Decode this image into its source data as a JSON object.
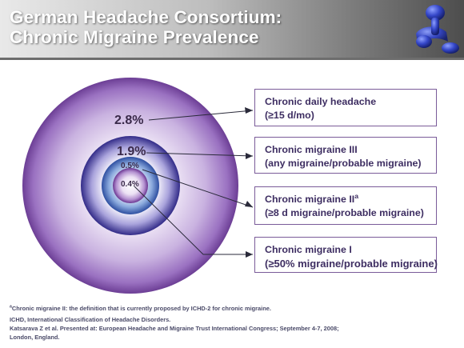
{
  "slide": {
    "title_line1": "German Headache Consortium:",
    "title_line2": "Chronic Migraine Prevalence"
  },
  "rings": [
    {
      "value": "2.8%",
      "category_line1": "Chronic daily headache",
      "category_line2": "(≥15 d/mo)"
    },
    {
      "value": "1.9%",
      "category_line1": "Chronic migraine III",
      "category_line2": "(any migraine/probable migraine)"
    },
    {
      "value": "0.5%",
      "category_line1": "Chronic migraine II",
      "category_sup": "a",
      "category_line2": "(≥8 d migraine/probable migraine)"
    },
    {
      "value": "0.4%",
      "category_line1": "Chronic migraine I",
      "category_line2": "(≥50% migraine/probable migraine)"
    }
  ],
  "colors": {
    "ring_outer": "#6c3e95",
    "ring_middle": "#322b88",
    "ring_inner": "#2d4ea0",
    "ring_core": "#6a3590",
    "box_border": "#7a5b99",
    "label_text": "#3e2e62"
  },
  "footnotes": {
    "note_sup": "a",
    "note": "Chronic migraine II: the definition that is currently proposed by ICHD-2 for chronic migraine.",
    "abbreviation": "ICHD, International Classification of Headache Disorders.",
    "reference_line1": "Katsarava Z et al. Presented at: European Headache and Migraine Trust International Congress; September 4-7, 2008;",
    "reference_line2": "London, England."
  },
  "decor": {
    "header_art": "receptor-molecule-icon"
  }
}
